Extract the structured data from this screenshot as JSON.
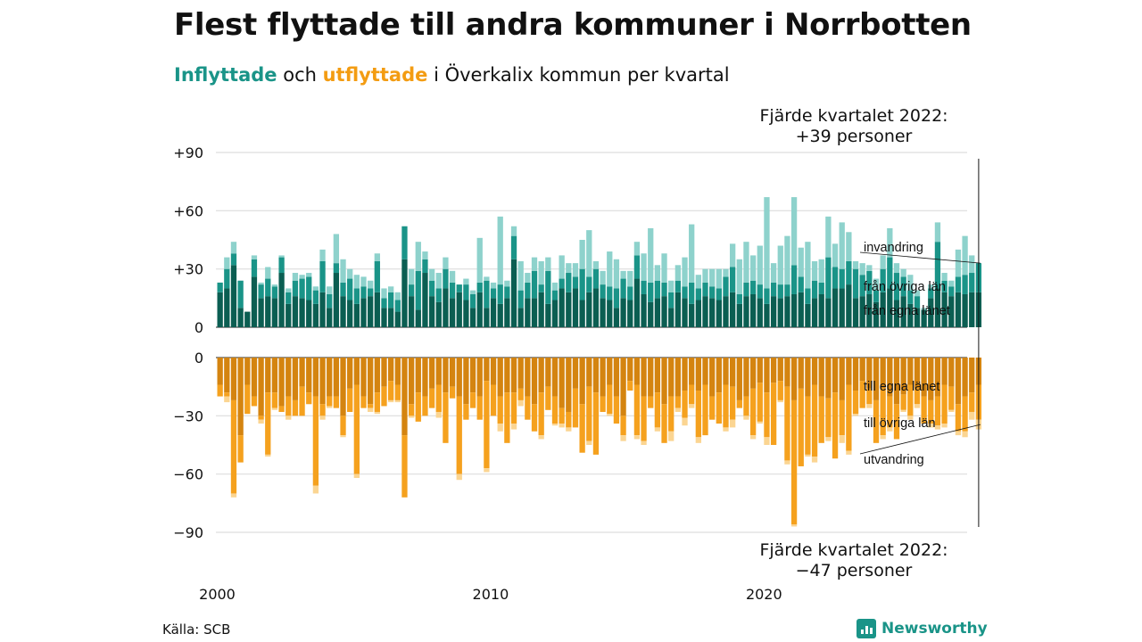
{
  "title": "Flest flyttade till andra kommuner i Norrbotten",
  "subtitle": {
    "in_word": "Inflyttade",
    "mid": " och ",
    "out_word": "utflyttade",
    "rest": " i Överkalix kommun per kvartal"
  },
  "annotation_top": {
    "line1": "Fjärde kvartalet 2022:",
    "line2": "+39 personer"
  },
  "annotation_bottom": {
    "line1": "Fjärde kvartalet 2022:",
    "line2": "−47 personer"
  },
  "source": "Källa: SCB",
  "brand": "Newsworthy",
  "colors": {
    "in_dark": "#0b5e52",
    "in_mid": "#1a9488",
    "in_light": "#8ed2cc",
    "out_dark": "#d48410",
    "out_mid": "#f5a11e",
    "out_light": "#fbd592",
    "grid": "#dddddd",
    "text": "#111111"
  },
  "chart_data": {
    "type": "bar",
    "start_year": 2000,
    "quarters_per_year": 4,
    "x_tick_labels": [
      "2000",
      "2010",
      "2020"
    ],
    "top_panel": {
      "y_ticks": [
        0,
        30,
        60,
        90
      ],
      "y_tick_labels": [
        "0",
        "+30",
        "+60",
        "+90"
      ],
      "ylim": [
        0,
        90
      ],
      "series": [
        {
          "name": "från egna länet",
          "values": [
            18,
            20,
            32,
            10,
            8,
            26,
            15,
            16,
            15,
            28,
            12,
            16,
            15,
            14,
            12,
            18,
            10,
            28,
            16,
            14,
            12,
            15,
            16,
            18,
            10,
            10,
            8,
            35,
            16,
            9,
            28,
            16,
            13,
            20,
            15,
            18,
            14,
            10,
            18,
            10,
            15,
            12,
            15,
            35,
            10,
            15,
            15,
            18,
            12,
            14,
            20,
            18,
            20,
            14,
            18,
            20,
            15,
            14,
            10,
            15,
            14,
            25,
            17,
            13,
            15,
            16,
            10,
            18,
            15,
            12,
            14,
            16,
            15,
            14,
            16,
            18,
            12,
            16,
            17,
            15,
            12,
            16,
            15,
            16,
            17,
            18,
            12,
            15,
            17,
            15,
            20,
            20,
            22,
            15,
            16,
            17,
            13,
            18,
            20,
            14,
            16,
            12,
            10,
            9,
            15,
            20,
            18,
            16,
            18,
            17,
            18,
            18
          ]
        },
        {
          "name": "från övriga län",
          "values": [
            5,
            10,
            6,
            14,
            0,
            9,
            7,
            9,
            6,
            8,
            6,
            8,
            10,
            12,
            7,
            16,
            7,
            5,
            7,
            11,
            8,
            6,
            4,
            16,
            5,
            8,
            6,
            17,
            6,
            20,
            7,
            8,
            7,
            10,
            8,
            4,
            8,
            7,
            5,
            14,
            5,
            10,
            6,
            12,
            9,
            8,
            14,
            4,
            17,
            5,
            5,
            10,
            6,
            16,
            8,
            10,
            7,
            7,
            10,
            10,
            7,
            12,
            7,
            10,
            9,
            7,
            8,
            6,
            6,
            11,
            6,
            7,
            6,
            6,
            10,
            13,
            5,
            7,
            7,
            7,
            8,
            7,
            7,
            6,
            15,
            8,
            8,
            9,
            6,
            21,
            11,
            10,
            12,
            15,
            11,
            12,
            6,
            12,
            16,
            14,
            10,
            7,
            6,
            0,
            5,
            24,
            6,
            5,
            8,
            10,
            10,
            15
          ]
        },
        {
          "name": "invandring",
          "values": [
            0,
            6,
            6,
            0,
            0,
            2,
            1,
            6,
            1,
            1,
            2,
            4,
            2,
            2,
            2,
            6,
            4,
            15,
            12,
            5,
            7,
            5,
            4,
            4,
            5,
            3,
            4,
            0,
            8,
            15,
            4,
            6,
            8,
            6,
            6,
            0,
            3,
            2,
            23,
            2,
            3,
            35,
            3,
            5,
            15,
            5,
            7,
            12,
            7,
            4,
            12,
            5,
            7,
            15,
            24,
            4,
            7,
            18,
            15,
            4,
            8,
            7,
            14,
            28,
            8,
            15,
            6,
            8,
            15,
            30,
            7,
            7,
            9,
            10,
            4,
            12,
            18,
            21,
            13,
            20,
            47,
            10,
            20,
            25,
            35,
            15,
            24,
            10,
            12,
            21,
            12,
            24,
            15,
            4,
            6,
            3,
            6,
            7,
            15,
            5,
            4,
            8,
            3,
            1,
            2,
            10,
            4,
            3,
            14,
            20,
            9,
            0
          ]
        }
      ]
    },
    "bottom_panel": {
      "y_ticks": [
        0,
        -30,
        -60,
        -90
      ],
      "y_tick_labels": [
        "0",
        "−30",
        "−60",
        "−90"
      ],
      "ylim": [
        -90,
        0
      ],
      "series": [
        {
          "name": "till egna länet",
          "values": [
            -14,
            -18,
            -22,
            -40,
            -14,
            -20,
            -30,
            -18,
            -18,
            -25,
            -20,
            -22,
            -15,
            -18,
            -20,
            -24,
            -20,
            -20,
            -30,
            -16,
            -14,
            -20,
            -24,
            -18,
            -15,
            -12,
            -14,
            -40,
            -24,
            -18,
            -20,
            -16,
            -14,
            -18,
            -15,
            -20,
            -24,
            -18,
            -20,
            -12,
            -14,
            -20,
            -18,
            -18,
            -16,
            -20,
            -24,
            -18,
            -15,
            -20,
            -26,
            -28,
            -16,
            -24,
            -15,
            -18,
            -20,
            -14,
            -20,
            -30,
            -12,
            -14,
            -20,
            -20,
            -18,
            -24,
            -20,
            -20,
            -17,
            -14,
            -17,
            -14,
            -20,
            -18,
            -14,
            -15,
            -22,
            -20,
            -16,
            -13,
            -18,
            -13,
            -12,
            -15,
            -22,
            -16,
            -20,
            -14,
            -20,
            -21,
            -18,
            -22,
            -14,
            -17,
            -12,
            -16,
            -22,
            -16,
            -20,
            -24,
            -19,
            -14,
            -16,
            -20,
            -22,
            -20,
            -14,
            -15,
            -24,
            -20,
            -18,
            -14
          ]
        },
        {
          "name": "till övriga län",
          "values": [
            -6,
            -2,
            -48,
            -14,
            -15,
            -5,
            -2,
            -32,
            -8,
            -3,
            -10,
            -8,
            -15,
            -6,
            -46,
            -6,
            -5,
            -6,
            -10,
            -12,
            -46,
            -6,
            -2,
            -10,
            -10,
            -10,
            -8,
            -32,
            -6,
            -15,
            -10,
            -10,
            -14,
            -26,
            -6,
            -40,
            -8,
            -8,
            -12,
            -45,
            -16,
            -14,
            -26,
            -16,
            -6,
            -12,
            -14,
            -22,
            -12,
            -14,
            -8,
            -8,
            -20,
            -25,
            -28,
            -32,
            -8,
            -15,
            -14,
            -10,
            -5,
            -26,
            -23,
            -6,
            -18,
            -20,
            -18,
            -6,
            -14,
            -10,
            -24,
            -26,
            -12,
            -16,
            -22,
            -17,
            -4,
            -10,
            -24,
            -20,
            -23,
            -32,
            -10,
            -38,
            -64,
            -40,
            -30,
            -37,
            -24,
            -20,
            -34,
            -18,
            -34,
            -12,
            -14,
            -8,
            -22,
            -24,
            -16,
            -18,
            -8,
            -16,
            -8,
            -14,
            -12,
            -15,
            -20,
            -12,
            -14,
            -18,
            -10,
            -18
          ]
        },
        {
          "name": "utvandring",
          "values": [
            0,
            -3,
            -2,
            0,
            0,
            0,
            -2,
            -1,
            -1,
            0,
            -2,
            0,
            0,
            0,
            -4,
            -2,
            -1,
            0,
            -1,
            0,
            -2,
            0,
            -2,
            -1,
            0,
            -1,
            -1,
            0,
            -1,
            0,
            0,
            0,
            -3,
            0,
            0,
            -3,
            0,
            0,
            0,
            -2,
            0,
            -4,
            0,
            -3,
            -3,
            0,
            0,
            -2,
            0,
            -1,
            -2,
            -2,
            0,
            0,
            -2,
            0,
            0,
            -1,
            0,
            -3,
            0,
            -2,
            -2,
            0,
            -2,
            0,
            -5,
            -2,
            -4,
            -2,
            -3,
            0,
            0,
            0,
            -2,
            -4,
            0,
            -2,
            -2,
            -1,
            -4,
            0,
            -1,
            -2,
            -1,
            0,
            -1,
            -3,
            0,
            -2,
            0,
            -4,
            -2,
            -1,
            0,
            -2,
            0,
            -2,
            -2,
            0,
            -1,
            -2,
            -2,
            0,
            -2,
            -2,
            -2,
            -1,
            -2,
            -3,
            -4,
            -5
          ]
        }
      ]
    },
    "end_labels_top": [
      "invandring",
      "från övriga län",
      "från egna länet"
    ],
    "end_labels_bottom": [
      "till egna länet",
      "till övriga län",
      "utvandring"
    ],
    "highlight": {
      "label": "Fjärde kvartalet 2022",
      "in_total": 39,
      "out_total": -47
    }
  }
}
